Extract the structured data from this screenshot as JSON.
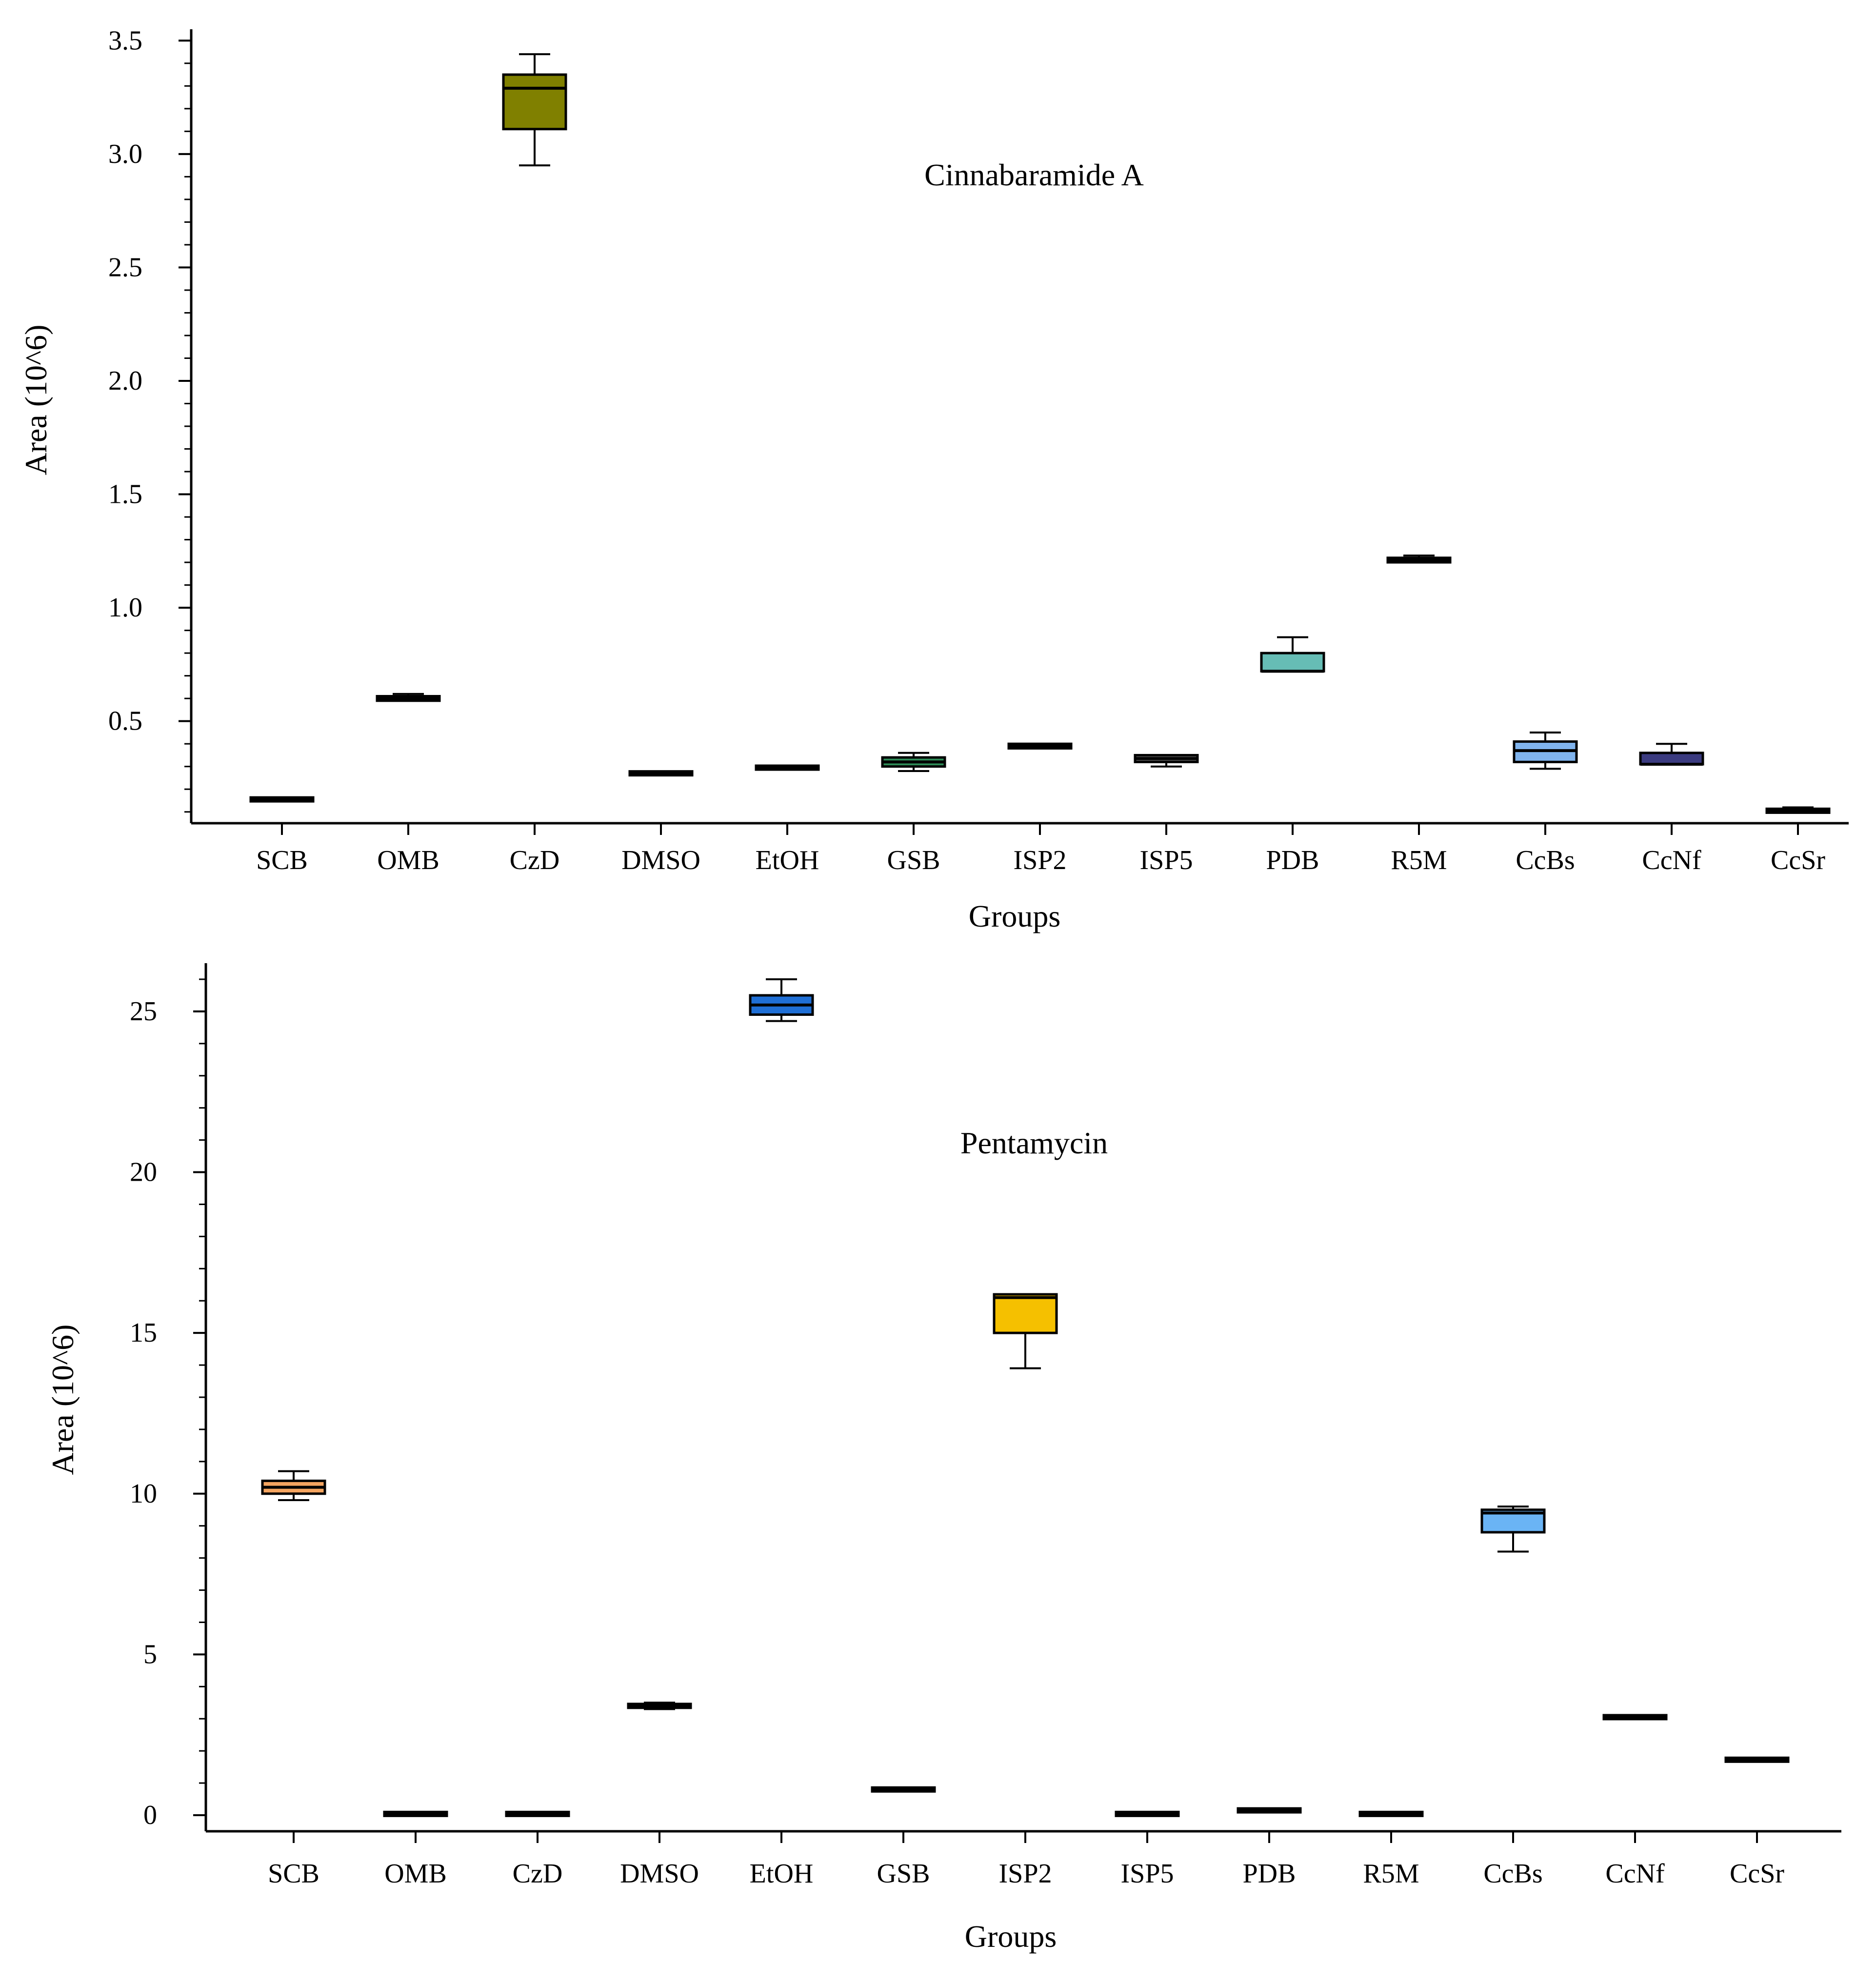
{
  "chart_data": [
    {
      "type": "box",
      "title": "Cinnabaramide A",
      "xlabel": "Groups",
      "ylabel": "Area (10^6)",
      "ylim": [
        0.05,
        3.55
      ],
      "yticks": [
        0.5,
        1.0,
        1.5,
        2.0,
        2.5,
        3.0,
        3.5
      ],
      "ytick_labels": [
        "0.5",
        "1.0",
        "1.5",
        "2.0",
        "2.5",
        "3.0",
        "3.5"
      ],
      "categories": [
        "SCB",
        "OMB",
        "CzD",
        "DMSO",
        "EtOH",
        "GSB",
        "ISP2",
        "ISP5",
        "PDB",
        "R5M",
        "CcBs",
        "CcNf",
        "CcSr"
      ],
      "colors": [
        "#1a1a1a",
        "#e8e8e8",
        "#808000",
        "#1a1a1a",
        "#1a1a1a",
        "#2e8b57",
        "#1a1a1a",
        "#5a5a5a",
        "#66bdb5",
        "#1a1a1a",
        "#80b4ee",
        "#3b3b80",
        "#1a1a1a"
      ],
      "boxes": [
        {
          "min": 0.15,
          "q1": 0.15,
          "median": 0.155,
          "q3": 0.16,
          "max": 0.16
        },
        {
          "min": 0.59,
          "q1": 0.59,
          "median": 0.6,
          "q3": 0.61,
          "max": 0.62
        },
        {
          "min": 2.95,
          "q1": 3.11,
          "median": 3.29,
          "q3": 3.35,
          "max": 3.44
        },
        {
          "min": 0.265,
          "q1": 0.265,
          "median": 0.27,
          "q3": 0.275,
          "max": 0.275
        },
        {
          "min": 0.29,
          "q1": 0.29,
          "median": 0.295,
          "q3": 0.3,
          "max": 0.3
        },
        {
          "min": 0.28,
          "q1": 0.3,
          "median": 0.32,
          "q3": 0.34,
          "max": 0.36
        },
        {
          "min": 0.38,
          "q1": 0.38,
          "median": 0.39,
          "q3": 0.4,
          "max": 0.4
        },
        {
          "min": 0.3,
          "q1": 0.32,
          "median": 0.335,
          "q3": 0.35,
          "max": 0.35
        },
        {
          "min": 0.72,
          "q1": 0.72,
          "median": 0.72,
          "q3": 0.8,
          "max": 0.87
        },
        {
          "min": 1.2,
          "q1": 1.2,
          "median": 1.21,
          "q3": 1.22,
          "max": 1.23
        },
        {
          "min": 0.29,
          "q1": 0.32,
          "median": 0.37,
          "q3": 0.41,
          "max": 0.45
        },
        {
          "min": 0.31,
          "q1": 0.31,
          "median": 0.31,
          "q3": 0.36,
          "max": 0.4
        },
        {
          "min": 0.1,
          "q1": 0.1,
          "median": 0.105,
          "q3": 0.11,
          "max": 0.12
        }
      ]
    },
    {
      "type": "box",
      "title": "Pentamycin",
      "xlabel": "Groups",
      "ylabel": "Area (10^6)",
      "ylim": [
        -0.5,
        26.5
      ],
      "yticks": [
        0,
        5,
        10,
        15,
        20,
        25
      ],
      "ytick_labels": [
        "0",
        "5",
        "10",
        "15",
        "20",
        "25"
      ],
      "categories": [
        "SCB",
        "OMB",
        "CzD",
        "DMSO",
        "EtOH",
        "GSB",
        "ISP2",
        "ISP5",
        "PDB",
        "R5M",
        "CcBs",
        "CcNf",
        "CcSr"
      ],
      "colors": [
        "#f4a460",
        "#1a1a1a",
        "#1a1a1a",
        "#1a1a1a",
        "#1f6fd6",
        "#1a1a1a",
        "#f5c000",
        "#1a1a1a",
        "#1a1a1a",
        "#1a1a1a",
        "#6ab4f5",
        "#1a1a1a",
        "#1a1a1a"
      ],
      "boxes": [
        {
          "min": 9.8,
          "q1": 10.0,
          "median": 10.2,
          "q3": 10.4,
          "max": 10.7
        },
        {
          "min": 0.03,
          "q1": 0.03,
          "median": 0.04,
          "q3": 0.05,
          "max": 0.05
        },
        {
          "min": 0.03,
          "q1": 0.03,
          "median": 0.04,
          "q3": 0.05,
          "max": 0.05
        },
        {
          "min": 3.3,
          "q1": 3.35,
          "median": 3.4,
          "q3": 3.45,
          "max": 3.5
        },
        {
          "min": 24.7,
          "q1": 24.9,
          "median": 25.2,
          "q3": 25.5,
          "max": 26.0
        },
        {
          "min": 0.75,
          "q1": 0.75,
          "median": 0.8,
          "q3": 0.85,
          "max": 0.85
        },
        {
          "min": 13.9,
          "q1": 15.0,
          "median": 16.1,
          "q3": 16.2,
          "max": 16.2
        },
        {
          "min": 0.03,
          "q1": 0.03,
          "median": 0.04,
          "q3": 0.05,
          "max": 0.05
        },
        {
          "min": 0.12,
          "q1": 0.12,
          "median": 0.15,
          "q3": 0.18,
          "max": 0.18
        },
        {
          "min": 0.03,
          "q1": 0.03,
          "median": 0.04,
          "q3": 0.05,
          "max": 0.05
        },
        {
          "min": 8.2,
          "q1": 8.8,
          "median": 9.4,
          "q3": 9.5,
          "max": 9.6
        },
        {
          "min": 3.0,
          "q1": 3.0,
          "median": 3.05,
          "q3": 3.1,
          "max": 3.1
        },
        {
          "min": 1.7,
          "q1": 1.7,
          "median": 1.72,
          "q3": 1.75,
          "max": 1.75
        }
      ]
    }
  ]
}
